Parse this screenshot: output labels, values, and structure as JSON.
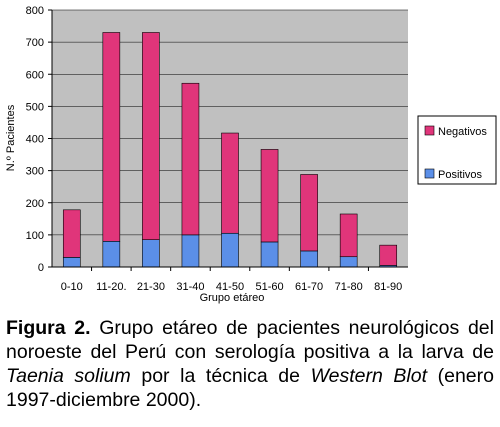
{
  "chart_data": {
    "type": "bar",
    "stacked": true,
    "categories": [
      "0-10",
      "11-20.",
      "21-30",
      "31-40",
      "41-50",
      "51-60",
      "61-70",
      "71-80",
      "81-90"
    ],
    "series": [
      {
        "name": "Positivos",
        "color": "#5b8fe8",
        "values": [
          30,
          80,
          85,
          100,
          105,
          78,
          50,
          32,
          5
        ]
      },
      {
        "name": "Negativos",
        "color": "#e0357a",
        "values": [
          148,
          650,
          645,
          472,
          312,
          288,
          238,
          133,
          63
        ]
      }
    ],
    "ylabel": "N.º Pacientes",
    "xlabel": "Grupo etáreo",
    "ylim": [
      0,
      800
    ],
    "yticks": [
      "0",
      "100",
      "200",
      "300",
      "400",
      "500",
      "600",
      "700",
      "800"
    ],
    "grid": true,
    "plot_background": "#c0c0c0",
    "legend_position": "right"
  },
  "caption": {
    "figure_label": "Figura 2.",
    "text_part1": " Grupo etáreo de pacientes neurológicos del noroeste del Perú con serología positiva a la larva de ",
    "species": "Taenia solium",
    "text_part2": " por la técnica de ",
    "technique": "Western Blot",
    "text_part3": " (enero 1997-diciembre 2000)."
  }
}
